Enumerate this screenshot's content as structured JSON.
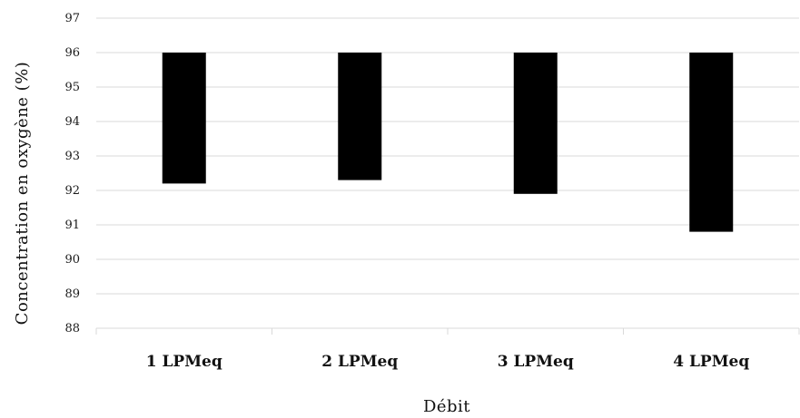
{
  "chart_data": {
    "type": "bar",
    "subtype": "floating-range",
    "title": "",
    "xlabel": "Débit",
    "ylabel": "Concentration en oxygène (%)",
    "ylim": [
      88,
      97
    ],
    "yticks": [
      "88",
      "89",
      "90",
      "91",
      "92",
      "93",
      "94",
      "95",
      "96",
      "97"
    ],
    "categories": [
      "1 LPMeq",
      "2 LPMeq",
      "3 LPMeq",
      "4 LPMeq"
    ],
    "series": [
      {
        "low": [
          92.2,
          92.3,
          91.9,
          90.8
        ],
        "high": [
          96,
          96,
          96,
          96
        ]
      }
    ],
    "bar_color": "#000000",
    "grid": true,
    "legend": "none"
  }
}
